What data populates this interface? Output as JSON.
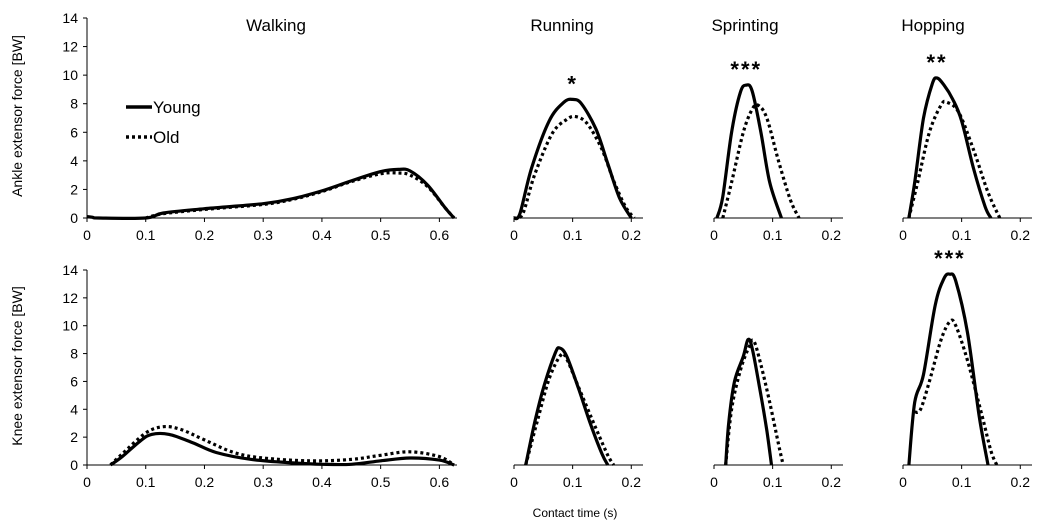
{
  "figure": {
    "x_axis_label": "Contact time (s)",
    "y_axis_labels": [
      "Ankle extensor force [BW]",
      "Knee extensor force [BW]"
    ],
    "legend": [
      {
        "name": "Young",
        "style": "solid"
      },
      {
        "name": "Old",
        "style": "dotted"
      }
    ]
  },
  "chart_data": [
    {
      "type": "line",
      "row": "ankle",
      "panel": "Walking",
      "title": "Walking",
      "ylabel": "Ankle extensor force [BW]",
      "xlim": [
        0,
        0.63
      ],
      "ylim": [
        0,
        14
      ],
      "xticks": [
        "0",
        "0.1",
        "0.2",
        "0.3",
        "0.4",
        "0.5",
        "0.6"
      ],
      "yticks": [
        "0",
        "2",
        "4",
        "6",
        "8",
        "10",
        "12",
        "14"
      ],
      "significance": "",
      "series": [
        {
          "name": "Young",
          "style": "solid",
          "points": [
            [
              0,
              0.1
            ],
            [
              0.01,
              0.05
            ],
            [
              0.02,
              0
            ],
            [
              0.1,
              0
            ],
            [
              0.13,
              0.35
            ],
            [
              0.2,
              0.65
            ],
            [
              0.3,
              1.0
            ],
            [
              0.35,
              1.35
            ],
            [
              0.4,
              1.9
            ],
            [
              0.45,
              2.6
            ],
            [
              0.5,
              3.25
            ],
            [
              0.53,
              3.4
            ],
            [
              0.55,
              3.3
            ],
            [
              0.58,
              2.3
            ],
            [
              0.61,
              0.7
            ],
            [
              0.625,
              0
            ]
          ]
        },
        {
          "name": "Old",
          "style": "dotted",
          "points": [
            [
              0.1,
              0
            ],
            [
              0.13,
              0.3
            ],
            [
              0.2,
              0.6
            ],
            [
              0.3,
              0.95
            ],
            [
              0.35,
              1.3
            ],
            [
              0.4,
              1.85
            ],
            [
              0.45,
              2.55
            ],
            [
              0.5,
              3.1
            ],
            [
              0.53,
              3.15
            ],
            [
              0.55,
              3.0
            ],
            [
              0.58,
              2.2
            ],
            [
              0.61,
              0.7
            ],
            [
              0.625,
              0
            ]
          ]
        }
      ]
    },
    {
      "type": "line",
      "row": "ankle",
      "panel": "Running",
      "title": "Running",
      "xlim": [
        0,
        0.22
      ],
      "ylim": [
        0,
        14
      ],
      "xticks": [
        "0",
        "0.1",
        "0.2"
      ],
      "significance": "*",
      "series": [
        {
          "name": "Young",
          "style": "solid",
          "points": [
            [
              0,
              0
            ],
            [
              0.01,
              0.3
            ],
            [
              0.03,
              3.5
            ],
            [
              0.06,
              6.8
            ],
            [
              0.085,
              8.1
            ],
            [
              0.1,
              8.3
            ],
            [
              0.115,
              8.0
            ],
            [
              0.14,
              6.2
            ],
            [
              0.16,
              3.8
            ],
            [
              0.18,
              1.4
            ],
            [
              0.2,
              0
            ]
          ]
        },
        {
          "name": "Old",
          "style": "dotted",
          "points": [
            [
              0,
              0
            ],
            [
              0.015,
              0.3
            ],
            [
              0.035,
              3.0
            ],
            [
              0.065,
              5.9
            ],
            [
              0.09,
              6.9
            ],
            [
              0.105,
              7.1
            ],
            [
              0.125,
              6.6
            ],
            [
              0.15,
              4.8
            ],
            [
              0.17,
              2.6
            ],
            [
              0.19,
              0.8
            ],
            [
              0.205,
              0
            ]
          ]
        }
      ]
    },
    {
      "type": "line",
      "row": "ankle",
      "panel": "Sprinting",
      "title": "Sprinting",
      "xlim": [
        0,
        0.22
      ],
      "ylim": [
        0,
        14
      ],
      "xticks": [
        "0",
        "0.1",
        "0.2"
      ],
      "significance": "***",
      "series": [
        {
          "name": "Young",
          "style": "solid",
          "points": [
            [
              0.005,
              0
            ],
            [
              0.015,
              1.5
            ],
            [
              0.03,
              6.0
            ],
            [
              0.045,
              8.8
            ],
            [
              0.055,
              9.3
            ],
            [
              0.065,
              8.9
            ],
            [
              0.08,
              6.0
            ],
            [
              0.095,
              2.5
            ],
            [
              0.115,
              0
            ]
          ]
        },
        {
          "name": "Old",
          "style": "dotted",
          "points": [
            [
              0.015,
              0
            ],
            [
              0.03,
              2.5
            ],
            [
              0.05,
              6.0
            ],
            [
              0.065,
              7.6
            ],
            [
              0.075,
              7.9
            ],
            [
              0.09,
              7.0
            ],
            [
              0.11,
              4.0
            ],
            [
              0.13,
              1.3
            ],
            [
              0.145,
              0
            ]
          ]
        }
      ]
    },
    {
      "type": "line",
      "row": "ankle",
      "panel": "Hopping",
      "title": "Hopping",
      "xlim": [
        0,
        0.22
      ],
      "ylim": [
        0,
        14
      ],
      "xticks": [
        "0",
        "0.1",
        "0.2"
      ],
      "significance": "**",
      "series": [
        {
          "name": "Young",
          "style": "solid",
          "points": [
            [
              0.01,
              0
            ],
            [
              0.02,
              2.5
            ],
            [
              0.035,
              7.0
            ],
            [
              0.05,
              9.4
            ],
            [
              0.058,
              9.8
            ],
            [
              0.07,
              9.3
            ],
            [
              0.085,
              8.3
            ],
            [
              0.1,
              6.8
            ],
            [
              0.12,
              3.5
            ],
            [
              0.14,
              0.8
            ],
            [
              0.15,
              0
            ]
          ]
        },
        {
          "name": "Old",
          "style": "dotted",
          "points": [
            [
              0.01,
              0
            ],
            [
              0.025,
              2.5
            ],
            [
              0.045,
              6.0
            ],
            [
              0.065,
              7.9
            ],
            [
              0.075,
              8.1
            ],
            [
              0.095,
              7.4
            ],
            [
              0.12,
              4.8
            ],
            [
              0.145,
              1.8
            ],
            [
              0.165,
              0
            ]
          ]
        }
      ]
    },
    {
      "type": "line",
      "row": "knee",
      "panel": "Walking",
      "title": "",
      "ylabel": "Knee extensor force [BW]",
      "xlim": [
        0,
        0.63
      ],
      "ylim": [
        0,
        14
      ],
      "xticks": [
        "0",
        "0.1",
        "0.2",
        "0.3",
        "0.4",
        "0.5",
        "0.6"
      ],
      "yticks": [
        "0",
        "2",
        "4",
        "6",
        "8",
        "10",
        "12",
        "14"
      ],
      "significance": "",
      "series": [
        {
          "name": "Young",
          "style": "solid",
          "points": [
            [
              0.04,
              0
            ],
            [
              0.06,
              0.6
            ],
            [
              0.09,
              1.7
            ],
            [
              0.11,
              2.2
            ],
            [
              0.14,
              2.2
            ],
            [
              0.18,
              1.6
            ],
            [
              0.22,
              0.9
            ],
            [
              0.28,
              0.4
            ],
            [
              0.35,
              0.15
            ],
            [
              0.4,
              0.05
            ],
            [
              0.45,
              0.05
            ],
            [
              0.5,
              0.3
            ],
            [
              0.55,
              0.5
            ],
            [
              0.6,
              0.35
            ],
            [
              0.625,
              0
            ]
          ]
        },
        {
          "name": "Old",
          "style": "dotted",
          "points": [
            [
              0.04,
              0
            ],
            [
              0.06,
              0.8
            ],
            [
              0.1,
              2.3
            ],
            [
              0.13,
              2.75
            ],
            [
              0.16,
              2.55
            ],
            [
              0.2,
              1.8
            ],
            [
              0.25,
              0.9
            ],
            [
              0.3,
              0.5
            ],
            [
              0.38,
              0.3
            ],
            [
              0.45,
              0.4
            ],
            [
              0.5,
              0.7
            ],
            [
              0.55,
              0.95
            ],
            [
              0.6,
              0.6
            ],
            [
              0.625,
              0
            ]
          ]
        }
      ]
    },
    {
      "type": "line",
      "row": "knee",
      "panel": "Running",
      "title": "",
      "xlim": [
        0,
        0.22
      ],
      "ylim": [
        0,
        14
      ],
      "xticks": [
        "0",
        "0.1",
        "0.2"
      ],
      "significance": "",
      "series": [
        {
          "name": "Young",
          "style": "solid",
          "points": [
            [
              0.02,
              0
            ],
            [
              0.035,
              3.0
            ],
            [
              0.05,
              5.5
            ],
            [
              0.07,
              8.0
            ],
            [
              0.078,
              8.4
            ],
            [
              0.09,
              7.8
            ],
            [
              0.11,
              5.5
            ],
            [
              0.13,
              3.0
            ],
            [
              0.15,
              0.8
            ],
            [
              0.16,
              0
            ]
          ]
        },
        {
          "name": "Old",
          "style": "dotted",
          "points": [
            [
              0.02,
              0
            ],
            [
              0.04,
              3.2
            ],
            [
              0.06,
              6.2
            ],
            [
              0.08,
              7.9
            ],
            [
              0.09,
              7.6
            ],
            [
              0.11,
              5.6
            ],
            [
              0.14,
              2.6
            ],
            [
              0.16,
              0.7
            ],
            [
              0.17,
              0
            ]
          ]
        }
      ]
    },
    {
      "type": "line",
      "row": "knee",
      "panel": "Sprinting",
      "title": "",
      "xlim": [
        0,
        0.22
      ],
      "ylim": [
        0,
        14
      ],
      "xticks": [
        "0",
        "0.1",
        "0.2"
      ],
      "significance": "",
      "series": [
        {
          "name": "Young",
          "style": "solid",
          "points": [
            [
              0.02,
              0
            ],
            [
              0.025,
              3.0
            ],
            [
              0.035,
              6.0
            ],
            [
              0.05,
              7.8
            ],
            [
              0.058,
              9.0
            ],
            [
              0.065,
              8.4
            ],
            [
              0.078,
              5.5
            ],
            [
              0.09,
              2.5
            ],
            [
              0.098,
              0
            ]
          ]
        },
        {
          "name": "Old",
          "style": "dotted",
          "points": [
            [
              0.02,
              0
            ],
            [
              0.03,
              4.0
            ],
            [
              0.045,
              6.8
            ],
            [
              0.06,
              8.5
            ],
            [
              0.068,
              8.9
            ],
            [
              0.08,
              7.2
            ],
            [
              0.095,
              4.5
            ],
            [
              0.11,
              1.5
            ],
            [
              0.118,
              0
            ]
          ]
        }
      ]
    },
    {
      "type": "line",
      "row": "knee",
      "panel": "Hopping",
      "title": "",
      "xlim": [
        0,
        0.22
      ],
      "ylim": [
        0,
        14
      ],
      "xticks": [
        "0",
        "0.1",
        "0.2"
      ],
      "significance": "***",
      "series": [
        {
          "name": "Young",
          "style": "solid",
          "points": [
            [
              0.01,
              0
            ],
            [
              0.02,
              4.5
            ],
            [
              0.035,
              6.5
            ],
            [
              0.055,
              11.5
            ],
            [
              0.07,
              13.4
            ],
            [
              0.08,
              13.7
            ],
            [
              0.09,
              13.2
            ],
            [
              0.11,
              9.5
            ],
            [
              0.13,
              3.5
            ],
            [
              0.145,
              0
            ]
          ]
        },
        {
          "name": "Old",
          "style": "dotted",
          "points": [
            [
              0.02,
              3.8
            ],
            [
              0.03,
              4.0
            ],
            [
              0.045,
              6.0
            ],
            [
              0.065,
              9.0
            ],
            [
              0.08,
              10.3
            ],
            [
              0.09,
              10.0
            ],
            [
              0.11,
              7.5
            ],
            [
              0.135,
              3.5
            ],
            [
              0.15,
              1.0
            ],
            [
              0.16,
              0
            ]
          ]
        }
      ]
    }
  ]
}
